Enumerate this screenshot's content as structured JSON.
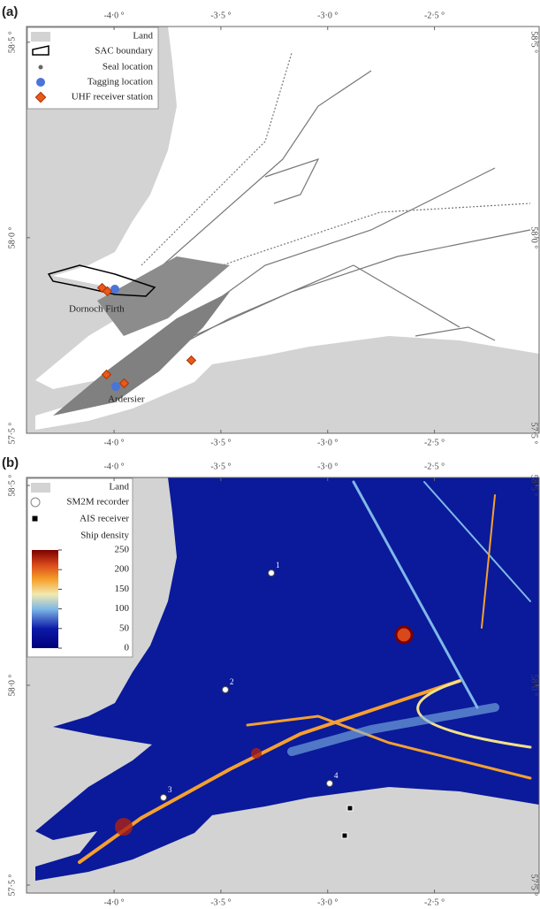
{
  "panels": [
    {
      "label": "(a)",
      "xlim": [
        -4.41,
        -2.01
      ],
      "ylim": [
        57.5,
        58.54
      ],
      "xticks": [
        {
          "value": -4.0,
          "label": "-4·0 °"
        },
        {
          "value": -3.5,
          "label": "-3·5 °"
        },
        {
          "value": -3.0,
          "label": "-3·0 °"
        },
        {
          "value": -2.5,
          "label": "-2·5 °"
        }
      ],
      "yticks": [
        {
          "value": 57.5,
          "label": "57·5 °"
        },
        {
          "value": 58.0,
          "label": "58·0 °"
        },
        {
          "value": 58.5,
          "label": "58·5 °"
        }
      ],
      "legend": [
        "Land",
        "SAC boundary",
        "Seal location",
        "Tagging location",
        "UHF receiver station"
      ],
      "places": [
        "Dornoch Firth",
        "Ardersier"
      ]
    },
    {
      "label": "(b)",
      "xlim": [
        -4.41,
        -2.01
      ],
      "ylim": [
        57.48,
        58.52
      ],
      "xticks": [
        {
          "value": -4.0,
          "label": "-4·0 °"
        },
        {
          "value": -3.5,
          "label": "-3·5 °"
        },
        {
          "value": -3.0,
          "label": "-3·0 °"
        },
        {
          "value": -2.5,
          "label": "-2·5 °"
        }
      ],
      "yticks": [
        {
          "value": 57.5,
          "label": "57·5 °"
        },
        {
          "value": 58.0,
          "label": "58·0 °"
        },
        {
          "value": 58.5,
          "label": "58·5 °"
        }
      ],
      "legend": [
        "Land",
        "SM2M recorder",
        "AIS receiver",
        "Ship density"
      ],
      "colorbar": {
        "clim": [
          0,
          250
        ],
        "ticks": [
          0,
          50,
          100,
          150,
          200,
          250
        ]
      },
      "stations": [
        "1",
        "2",
        "3",
        "4"
      ]
    }
  ]
}
